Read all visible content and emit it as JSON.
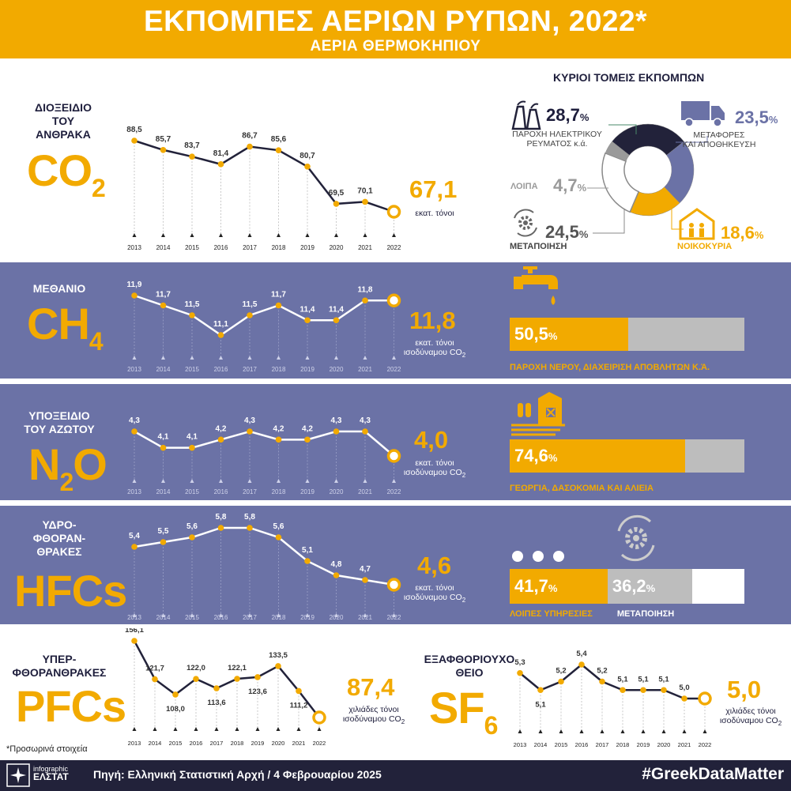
{
  "header": {
    "title": "ΕΚΠΟΜΠΕΣ ΑΕΡΙΩΝ ΡΥΠΩΝ, 2022*",
    "subtitle": "ΑΕΡΙΑ ΘΕΡΜΟΚΗΠΙΟΥ"
  },
  "colors": {
    "accent": "#f2aa00",
    "navy": "#22223a",
    "purple": "#6b72a6",
    "grey": "#bdbdbd"
  },
  "footnote": "*Προσωρινά στοιχεία",
  "footer": {
    "logo_top": "infographic",
    "logo_bottom": "ΕΛΣΤΑΤ",
    "source": "Πηγή: Ελληνική Στατιστική Αρχή  / 4 Φεβρουαρίου 2025",
    "hashtag": "#GreekDataMatter"
  },
  "co2": {
    "name_lines": [
      "ΔΙΟΞΕΙΔΙΟ",
      "ΤΟΥ",
      "ΑΝΘΡΑΚΑ"
    ],
    "formula": "CO",
    "formula_sub": "2",
    "value": "67,1",
    "unit_lines": [
      "εκατ. τόνοι"
    ],
    "sectors": {
      "title": "ΚΥΡΙΟΙ ΤΟΜΕΙΣ ΕΚΠΟΜΠΩΝ",
      "items": [
        {
          "name": "electricity",
          "value": "28,7",
          "pct": "%",
          "label_lines": [
            "ΠΑΡΟΧΗ ΗΛΕΚΤΡΙΚΟΥ",
            "ΡΕΥΜΑΤΟΣ κ.ά."
          ],
          "color": "#22223a",
          "share": 28.7
        },
        {
          "name": "transport",
          "value": "23,5",
          "pct": "%",
          "label_lines": [
            "ΜΕΤΑΦΟΡΕΣ",
            "ΚΑΙ ΑΠΟΘΗΚΕΥΣΗ"
          ],
          "color": "#6b72a6",
          "share": 23.5
        },
        {
          "name": "households",
          "value": "18,6",
          "pct": "%",
          "label_lines": [
            "ΝΟΙΚΟΚΥΡΙΑ"
          ],
          "color": "#f2aa00",
          "share": 18.6
        },
        {
          "name": "manufacturing",
          "value": "24,5",
          "pct": "%",
          "label_lines": [
            "ΜΕΤΑΠΟΙΗΣΗ"
          ],
          "color": "#ffffff",
          "share": 24.5
        },
        {
          "name": "other",
          "value": "4,7",
          "pct": "%",
          "label_lines": [
            "ΛΟΙΠΑ"
          ],
          "color": "#9a9a9a",
          "share": 4.7
        }
      ]
    }
  },
  "ch4": {
    "name_lines": [
      "ΜΕΘΑΝΙΟ"
    ],
    "formula": "CH",
    "formula_sub": "4",
    "value": "11,8",
    "unit_lines": [
      "εκατ. τόνοι",
      "ισοδύναμου CO"
    ],
    "unit_sub": "2",
    "bar": {
      "value": "50,5",
      "pct": "%",
      "share": 50.5,
      "label": "ΠΑΡΟΧΗ ΝΕΡΟΥ, ΔΙΑΧΕΙΡΙΣΗ ΑΠΟΒΛΗΤΩΝ κ.ά."
    }
  },
  "n2o": {
    "name_lines": [
      "ΥΠΟΞΕΙΔΙΟ",
      "ΤΟΥ ΑΖΩΤΟΥ"
    ],
    "formula": "N",
    "formula_sub": "2",
    "formula_tail": "O",
    "value": "4,0",
    "unit_lines": [
      "εκατ. τόνοι",
      "ισοδύναμου CO"
    ],
    "unit_sub": "2",
    "bar": {
      "value": "74,6",
      "pct": "%",
      "share": 74.6,
      "label": "ΓΕΩΡΓΙΑ, ΔΑΣΟΚΟΜΙΑ ΚΑΙ ΑΛΙΕΙΑ"
    }
  },
  "hfcs": {
    "name_lines": [
      "ΥΔΡΟ-",
      "ΦΘΟΡΑΝ-",
      "ΘΡΑΚΕΣ"
    ],
    "formula": "HFCs",
    "value": "4,6",
    "unit_lines": [
      "εκατ. τόνοι",
      "ισοδύναμου CO"
    ],
    "unit_sub": "2",
    "bars": [
      {
        "value": "41,7",
        "pct": "%",
        "share": 41.7,
        "label": "ΛΟΙΠΕΣ ΥΠΗΡΕΣΙΕΣ"
      },
      {
        "value": "36,2",
        "pct": "%",
        "share": 36.2,
        "label": "ΜΕΤΑΠΟΙΗΣΗ"
      }
    ]
  },
  "pfcs": {
    "name_lines": [
      "ΥΠΕΡ-",
      "ΦΘΟΡΑΝΘΡΑΚΕΣ"
    ],
    "formula": "PFCs",
    "value": "87,4",
    "unit_lines": [
      "χιλιάδες τόνοι",
      "ισοδύναμου CO"
    ],
    "unit_sub": "2"
  },
  "sf6": {
    "name_lines": [
      "ΕΞΑΦΘΟΡΙΟΥΧΟ",
      "ΘΕΙΟ"
    ],
    "formula": "SF",
    "formula_sub": "6",
    "value": "5,0",
    "unit_lines": [
      "χιλιάδες τόνοι",
      "ισοδύναμου CO"
    ],
    "unit_sub": "2"
  },
  "chart_data": [
    {
      "id": "co2",
      "type": "line",
      "x": [
        "2013",
        "2014",
        "2015",
        "2016",
        "2017",
        "2018",
        "2019",
        "2020",
        "2021",
        "2022"
      ],
      "values": [
        88.5,
        85.7,
        83.7,
        81.4,
        86.7,
        85.6,
        80.7,
        69.5,
        70.1,
        67.1
      ],
      "labels": [
        "88,5",
        "85,7",
        "83,7",
        "81,4",
        "86,7",
        "85,6",
        "80,7",
        "69,5",
        "70,1",
        ""
      ],
      "ylim": [
        67.1,
        88.5
      ]
    },
    {
      "id": "ch4",
      "type": "line",
      "x": [
        "2013",
        "2014",
        "2015",
        "2016",
        "2017",
        "2018",
        "2019",
        "2020",
        "2021",
        "2022"
      ],
      "values": [
        11.9,
        11.7,
        11.5,
        11.1,
        11.5,
        11.7,
        11.4,
        11.4,
        11.8,
        11.8
      ],
      "labels": [
        "11,9",
        "11,7",
        "11,5",
        "11,1",
        "11,5",
        "11,7",
        "11,4",
        "11,4",
        "11,8",
        ""
      ],
      "ylim": [
        11.1,
        11.9
      ]
    },
    {
      "id": "n2o",
      "type": "line",
      "x": [
        "2013",
        "2014",
        "2015",
        "2016",
        "2017",
        "2018",
        "2019",
        "2020",
        "2021",
        "2022"
      ],
      "values": [
        4.3,
        4.1,
        4.1,
        4.2,
        4.3,
        4.2,
        4.2,
        4.3,
        4.3,
        4.0
      ],
      "labels": [
        "4,3",
        "4,1",
        "4,1",
        "4,2",
        "4,3",
        "4,2",
        "4,2",
        "4,3",
        "4,3",
        ""
      ],
      "ylim": [
        4.0,
        4.3
      ]
    },
    {
      "id": "hfcs",
      "type": "line",
      "x": [
        "2013",
        "2014",
        "2015",
        "2016",
        "2017",
        "2018",
        "2019",
        "2020",
        "2021",
        "2022"
      ],
      "values": [
        5.4,
        5.5,
        5.6,
        5.8,
        5.8,
        5.6,
        5.1,
        4.8,
        4.7,
        4.6
      ],
      "labels": [
        "5,4",
        "5,5",
        "5,6",
        "5,8",
        "5,8",
        "5,6",
        "5,1",
        "4,8",
        "4,7",
        ""
      ],
      "ylim": [
        4.6,
        5.8
      ]
    },
    {
      "id": "pfcs",
      "type": "line",
      "x": [
        "2013",
        "2014",
        "2015",
        "2016",
        "2017",
        "2018",
        "2019",
        "2020",
        "2021",
        "2022"
      ],
      "values": [
        156.1,
        121.7,
        108.0,
        122.0,
        113.6,
        122.1,
        123.6,
        133.5,
        111.2,
        87.4
      ],
      "labels": [
        "156,1",
        "121,7",
        "108,0",
        "122,0",
        "113,6",
        "122,1",
        "123,6",
        "133,5",
        "111,2",
        ""
      ],
      "ylim": [
        87.4,
        156.1
      ]
    },
    {
      "id": "sf6",
      "type": "line",
      "x": [
        "2013",
        "2014",
        "2015",
        "2016",
        "2017",
        "2018",
        "2019",
        "2020",
        "2021",
        "2022"
      ],
      "values": [
        5.3,
        5.1,
        5.2,
        5.4,
        5.2,
        5.1,
        5.1,
        5.1,
        5.0,
        5.0
      ],
      "labels": [
        "5,3",
        "5,1",
        "5,2",
        "5,4",
        "5,2",
        "5,1",
        "5,1",
        "5,1",
        "5,0",
        ""
      ],
      "ylim": [
        5.0,
        5.4
      ]
    },
    {
      "id": "co2-sectors",
      "type": "pie",
      "categories": [
        "ΠΑΡΟΧΗ ΗΛΕΚΤΡΙΚΟΥ ΡΕΥΜΑΤΟΣ κ.ά.",
        "ΜΕΤΑΦΟΡΕΣ ΚΑΙ ΑΠΟΘΗΚΕΥΣΗ",
        "ΝΟΙΚΟΚΥΡΙΑ",
        "ΜΕΤΑΠΟΙΗΣΗ",
        "ΛΟΙΠΑ"
      ],
      "values": [
        28.7,
        23.5,
        18.6,
        24.5,
        4.7
      ]
    }
  ]
}
